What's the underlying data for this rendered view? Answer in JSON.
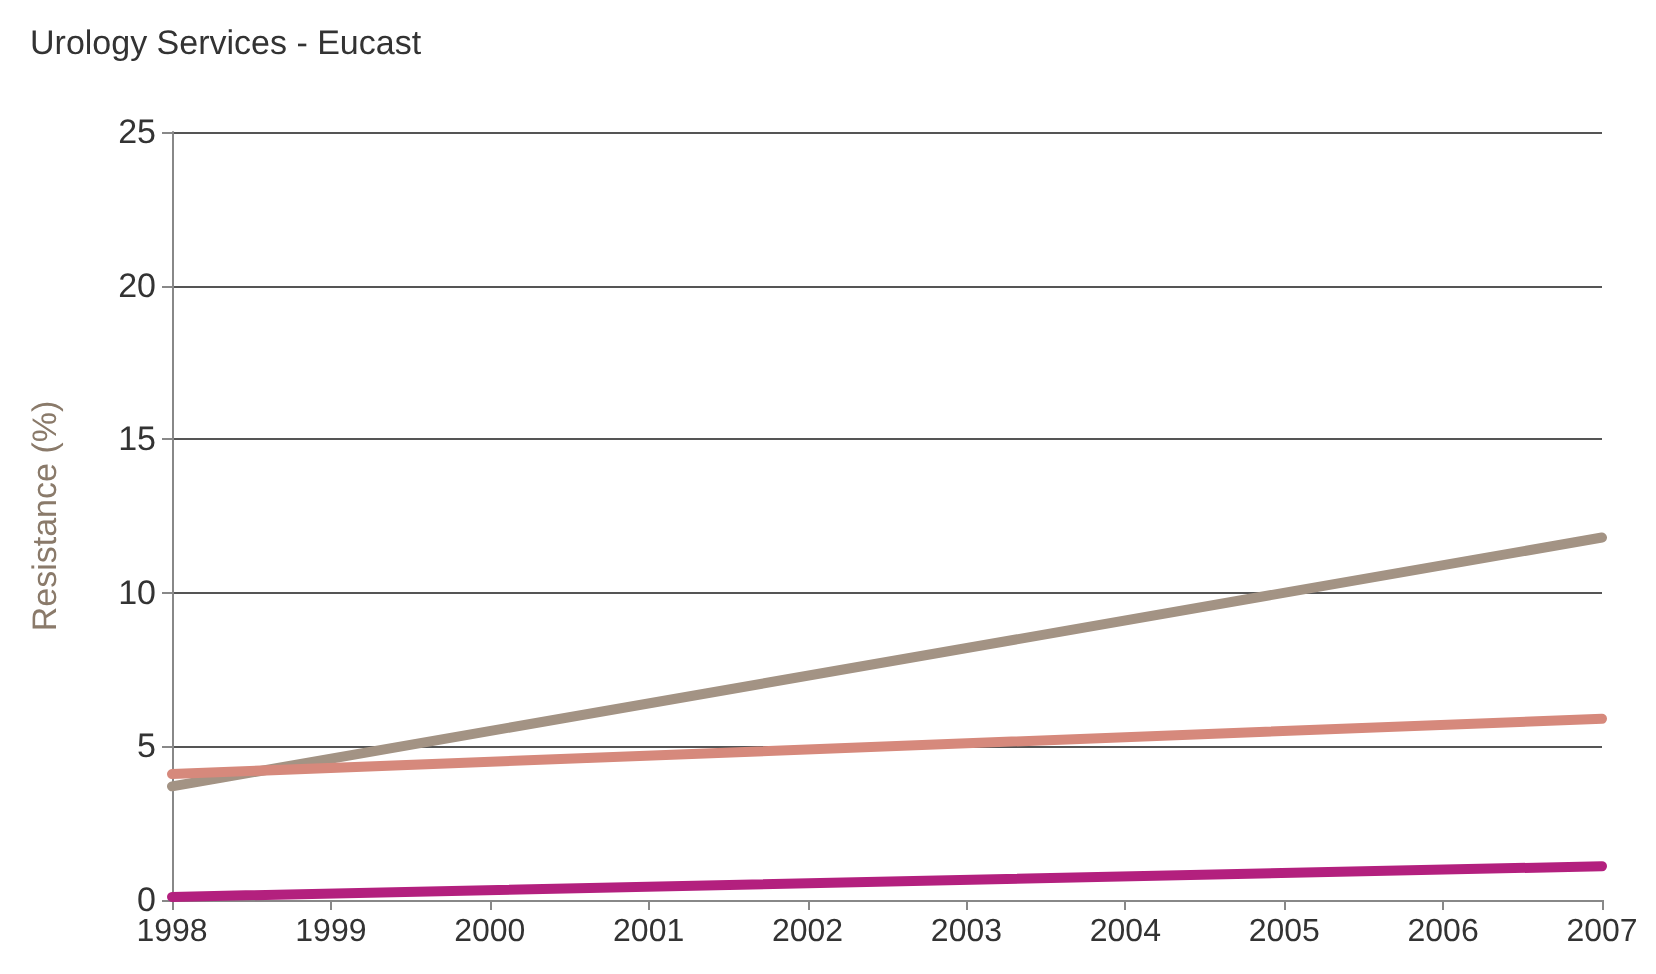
{
  "chart_data": {
    "type": "line",
    "title": "Urology Services - Eucast",
    "ylabel": "Resistance (%)",
    "x": [
      1998,
      2007
    ],
    "series": [
      {
        "color": "#a39384",
        "values": [
          3.7,
          11.8
        ]
      },
      {
        "color": "#d6897c",
        "values": [
          4.1,
          5.9
        ]
      },
      {
        "color": "#b3207e",
        "values": [
          0.1,
          1.1
        ]
      }
    ],
    "xlim": [
      1998,
      2007
    ],
    "xticks": [
      1998,
      1999,
      2000,
      2001,
      2002,
      2003,
      2004,
      2005,
      2006,
      2007
    ],
    "ylim": [
      0,
      25
    ],
    "yticks": [
      0,
      5,
      10,
      15,
      20,
      25
    ],
    "grid": "y",
    "marker": "none",
    "line_style": "solid"
  }
}
